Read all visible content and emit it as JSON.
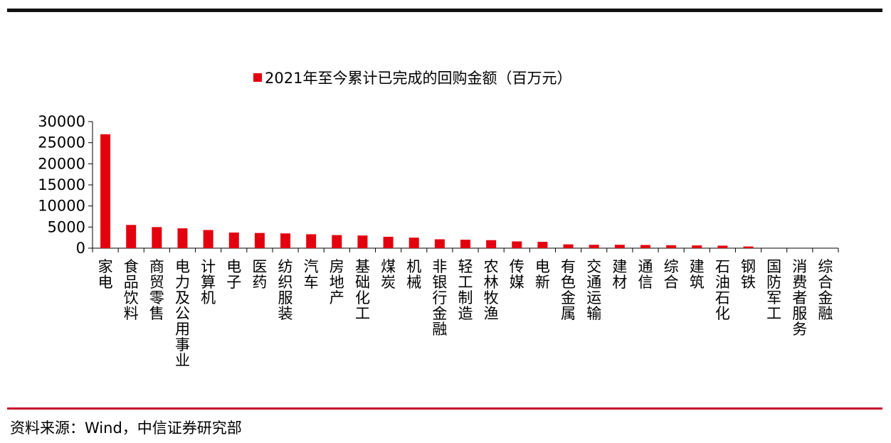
{
  "chart_data": {
    "type": "bar",
    "title": "",
    "xlabel": "",
    "ylabel": "",
    "ylim": [
      0,
      30000
    ],
    "yticks": [
      0,
      5000,
      10000,
      15000,
      20000,
      25000,
      30000
    ],
    "grid": false,
    "legend_position": "top-center",
    "bar_color": "#e3000f",
    "categories": [
      "家电",
      "食品饮料",
      "商贸零售",
      "电力及公用事业",
      "计算机",
      "电子",
      "医药",
      "纺织服装",
      "汽车",
      "房地产",
      "基础化工",
      "煤炭",
      "机械",
      "非银行金融",
      "轻工制造",
      "农林牧渔",
      "传媒",
      "电新",
      "有色金属",
      "交通运输",
      "建材",
      "通信",
      "综合",
      "建筑",
      "石油石化",
      "钢铁",
      "国防军工",
      "消费者服务",
      "综合金融"
    ],
    "series": [
      {
        "name": "2021年至今累计已完成的回购金额（百万元）",
        "values": [
          27000,
          5500,
          5000,
          4700,
          4300,
          3700,
          3600,
          3500,
          3300,
          3100,
          3000,
          2700,
          2500,
          2100,
          2000,
          1900,
          1600,
          1500,
          900,
          800,
          800,
          750,
          700,
          650,
          600,
          400,
          0,
          0,
          0
        ]
      }
    ]
  },
  "footer": {
    "source": "资料来源：Wind，中信证券研究部"
  }
}
